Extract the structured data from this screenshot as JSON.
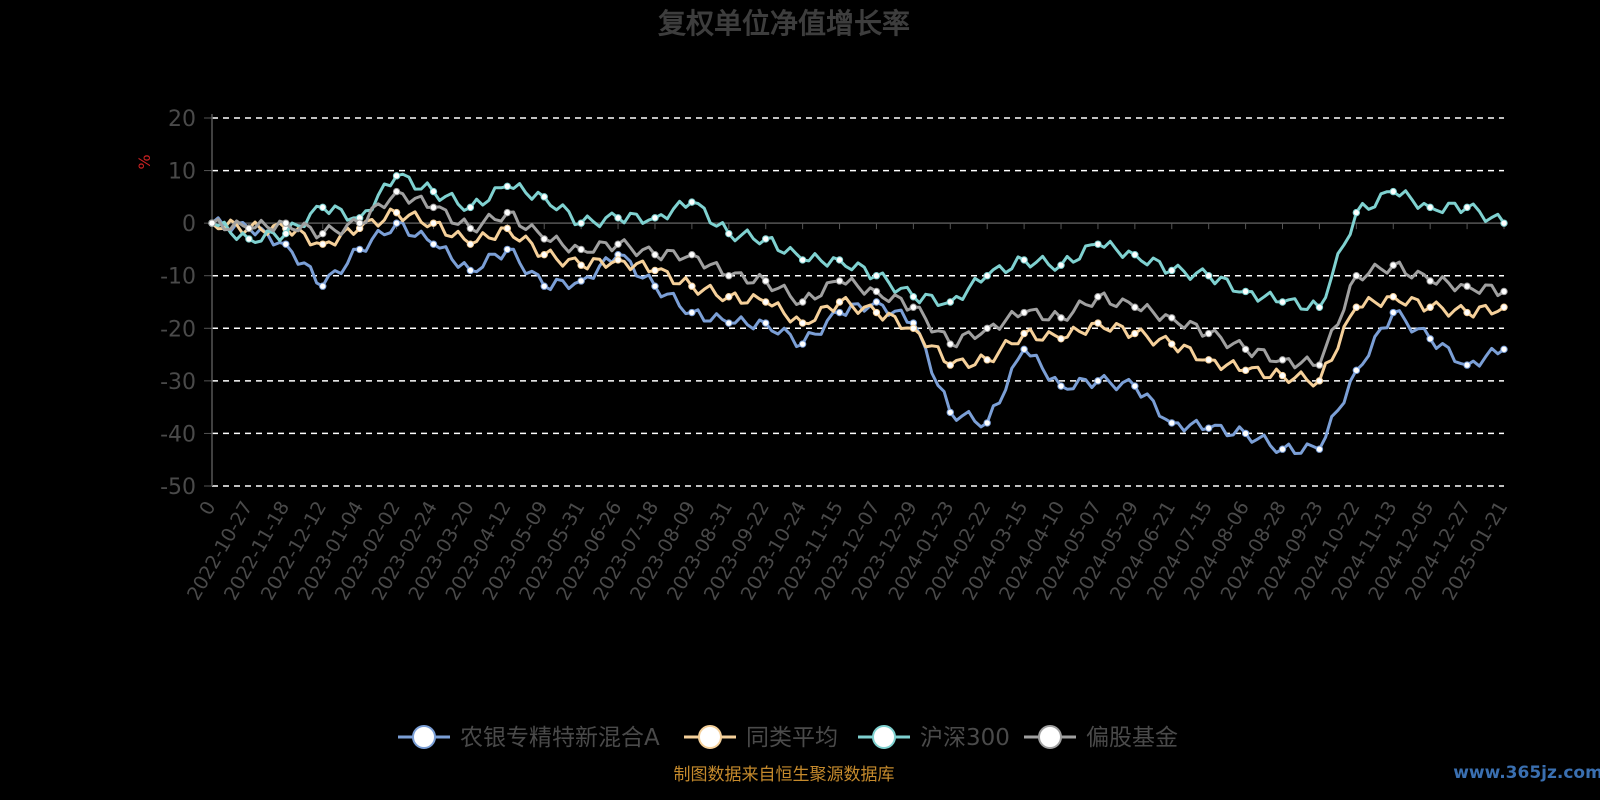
{
  "chart_data": {
    "type": "line",
    "title": "复权单位净值增长率",
    "ylabel": "%",
    "ylim": [
      -50,
      20
    ],
    "yticks": [
      20,
      10,
      0,
      -10,
      -20,
      -30,
      -40,
      -50
    ],
    "grid": true,
    "legend_placement": "bottom",
    "xlabels": [
      "0",
      "2022-10-27",
      "2022-11-18",
      "2022-12-12",
      "2023-01-04",
      "2023-02-02",
      "2023-02-24",
      "2023-03-20",
      "2023-04-12",
      "2023-05-09",
      "2023-05-31",
      "2023-06-26",
      "2023-07-18",
      "2023-08-09",
      "2023-08-31",
      "2023-09-22",
      "2023-10-24",
      "2023-11-15",
      "2023-12-07",
      "2023-12-29",
      "2024-01-23",
      "2024-02-22",
      "2024-03-15",
      "2024-04-10",
      "2024-05-07",
      "2024-05-29",
      "2024-06-21",
      "2024-07-15",
      "2024-08-06",
      "2024-08-28",
      "2024-09-23",
      "2024-10-22",
      "2024-11-13",
      "2024-12-05",
      "2024-12-27",
      "2025-01-21"
    ],
    "series": [
      {
        "name": "农银专精特新混合A",
        "color": "#7b9fd6",
        "values": [
          0,
          -1,
          -4,
          -12,
          -5,
          0,
          -4,
          -9,
          -5,
          -12,
          -11,
          -6,
          -12,
          -17,
          -19,
          -19,
          -23,
          -17,
          -15,
          -19,
          -36,
          -38,
          -24,
          -31,
          -30,
          -31,
          -38,
          -39,
          -40,
          -43,
          -43,
          -28,
          -17,
          -22,
          -27,
          -24
        ]
      },
      {
        "name": "同类平均",
        "color": "#f5d09a",
        "values": [
          0,
          -1,
          -1,
          -4,
          -1,
          2,
          0,
          -4,
          -1,
          -6,
          -8,
          -7,
          -9,
          -12,
          -14,
          -15,
          -19,
          -15,
          -17,
          -20,
          -27,
          -26,
          -21,
          -22,
          -19,
          -21,
          -23,
          -26,
          -28,
          -29,
          -30,
          -16,
          -14,
          -16,
          -17,
          -16
        ]
      },
      {
        "name": "沪深300",
        "color": "#7fd1d0",
        "values": [
          0,
          -3,
          -2,
          3,
          1,
          9,
          6,
          3,
          7,
          5,
          0,
          1,
          1,
          4,
          -2,
          -3,
          -7,
          -7,
          -10,
          -14,
          -15,
          -10,
          -7,
          -8,
          -4,
          -6,
          -9,
          -10,
          -13,
          -15,
          -16,
          2,
          6,
          3,
          3,
          0
        ]
      },
      {
        "name": "偏股基金",
        "color": "#a0a0a0",
        "values": [
          0,
          -1,
          0,
          -2,
          0,
          6,
          3,
          -1,
          2,
          -3,
          -5,
          -4,
          -6,
          -6,
          -10,
          -11,
          -15,
          -11,
          -13,
          -16,
          -23,
          -20,
          -17,
          -18,
          -14,
          -16,
          -18,
          -21,
          -24,
          -26,
          -27,
          -10,
          -8,
          -11,
          -12,
          -13
        ]
      }
    ]
  },
  "legend": {
    "items": [
      "农银专精特新混合A",
      "同类平均",
      "沪深300",
      "偏股基金"
    ]
  },
  "footer": {
    "source": "制图数据来自恒生聚源数据库",
    "watermark": "www.365jz.com"
  },
  "colors": {
    "background": "#000000",
    "grid": "#ffffff",
    "axis": "#555555",
    "source_text": "#c58a2c"
  }
}
